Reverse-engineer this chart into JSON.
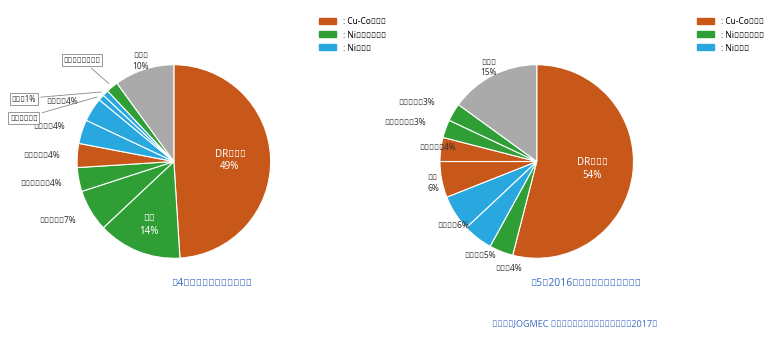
{
  "chart1": {
    "title": "図4．世界のコバルト埋蔵量",
    "labels": [
      "DRコンゴ",
      "豪州",
      "キューバ",
      "フィリピン",
      "ザンビア",
      "カナダ",
      "ロシア",
      "マダガスタル",
      "中国",
      "ニューカレドニア",
      "その他"
    ],
    "values": [
      49,
      14,
      7,
      4,
      4,
      4,
      4,
      1,
      1,
      2,
      10
    ],
    "colors": [
      "#C8581A",
      "#2E9E35",
      "#2E9E35",
      "#2E9E35",
      "#C8581A",
      "#29A8E0",
      "#29A8E0",
      "#29A8E0",
      "#29A8E0",
      "#2E9E35",
      "#AAAAAA"
    ],
    "internal_labels": [
      {
        "idx": 0,
        "text": "DRコンゴ\n49%",
        "r": 0.58
      },
      {
        "idx": 1,
        "text": "豪州\n14%",
        "r": 0.7
      }
    ],
    "external_labels": [
      {
        "idx": 2,
        "text": "キューバ　7%",
        "r": 1.18,
        "ha": "right"
      },
      {
        "idx": 3,
        "text": "フィリピン　4%",
        "r": 1.18,
        "ha": "right"
      },
      {
        "idx": 4,
        "text": "ザンビア　4%",
        "r": 1.18,
        "ha": "right"
      },
      {
        "idx": 5,
        "text": "カナダ　4%",
        "r": 1.18,
        "ha": "right"
      },
      {
        "idx": 6,
        "text": "ロシア　4%",
        "r": 1.18,
        "ha": "right"
      },
      {
        "idx": 10,
        "text": "その他\n10%",
        "r": 1.1,
        "ha": "center"
      }
    ],
    "box_labels": [
      {
        "idx": 7,
        "text": "マダガスタル"
      },
      {
        "idx": 8,
        "text": "中国　1%"
      },
      {
        "idx": 9,
        "text": "ニューカレドニア"
      }
    ]
  },
  "chart2": {
    "title": "図5．2016年のコバルト鉱石生産量",
    "labels": [
      "DRコンゴ",
      "豪州",
      "ロシア",
      "カナダ",
      "中国",
      "ザンビア",
      "フィリピン",
      "キューバ",
      "その他"
    ],
    "values": [
      54,
      4,
      5,
      6,
      6,
      4,
      3,
      3,
      15
    ],
    "colors": [
      "#C8581A",
      "#2E9E35",
      "#29A8E0",
      "#29A8E0",
      "#C8581A",
      "#C8581A",
      "#2E9E35",
      "#2E9E35",
      "#AAAAAA"
    ],
    "internal_labels": [
      {
        "idx": 0,
        "text": "DRコンゴ\n54%",
        "r": 0.58
      }
    ],
    "external_labels": [
      {
        "idx": 1,
        "text": "豪州　4%",
        "r": 1.18,
        "ha": "left"
      },
      {
        "idx": 2,
        "text": "ロシア　5%",
        "r": 1.22,
        "ha": "left"
      },
      {
        "idx": 3,
        "text": "カナダ　6%",
        "r": 1.22,
        "ha": "left"
      },
      {
        "idx": 4,
        "text": "中国\n6%",
        "r": 1.15,
        "ha": "left"
      },
      {
        "idx": 5,
        "text": "ザンビア　4%",
        "r": 1.22,
        "ha": "left"
      },
      {
        "idx": 6,
        "text": "フィリピン　3%",
        "r": 1.22,
        "ha": "right"
      },
      {
        "idx": 7,
        "text": "キューバ　3%",
        "r": 1.22,
        "ha": "right"
      },
      {
        "idx": 8,
        "text": "その他\n15%",
        "r": 1.1,
        "ha": "center"
      }
    ],
    "box_labels": []
  },
  "legend_labels": [
    ": Cu-Co硫化鉱",
    ": Niラテライト鉱",
    ": Ni硫化鉱"
  ],
  "legend_colors": [
    "#C8581A",
    "#2E9E35",
    "#29A8E0"
  ],
  "footer": "（出典：JOGMEC メタルマイニング・データブック2017）",
  "bg_color": "#FFFFFF",
  "text_color": "#333333",
  "title_color": "#4472C4",
  "border_color": "#CCCCCC"
}
